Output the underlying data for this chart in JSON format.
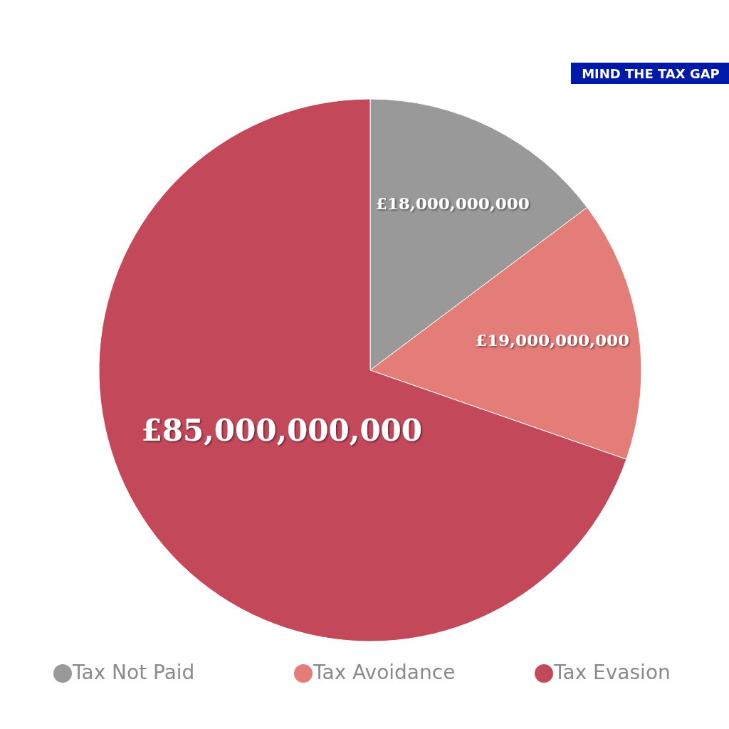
{
  "chart_data": {
    "type": "pie",
    "title": "MIND THE TAX GAP",
    "categories": [
      "Tax Not Paid",
      "Tax Avoidance",
      "Tax Evasion"
    ],
    "values": [
      18000000000,
      19000000000,
      85000000000
    ],
    "colors": [
      "#999999",
      "#e47c78",
      "#c3485a"
    ],
    "value_labels": [
      "£18,000,000,000",
      "£19,000,000,000",
      "£85,000,000,000"
    ],
    "legend": "bottom"
  }
}
